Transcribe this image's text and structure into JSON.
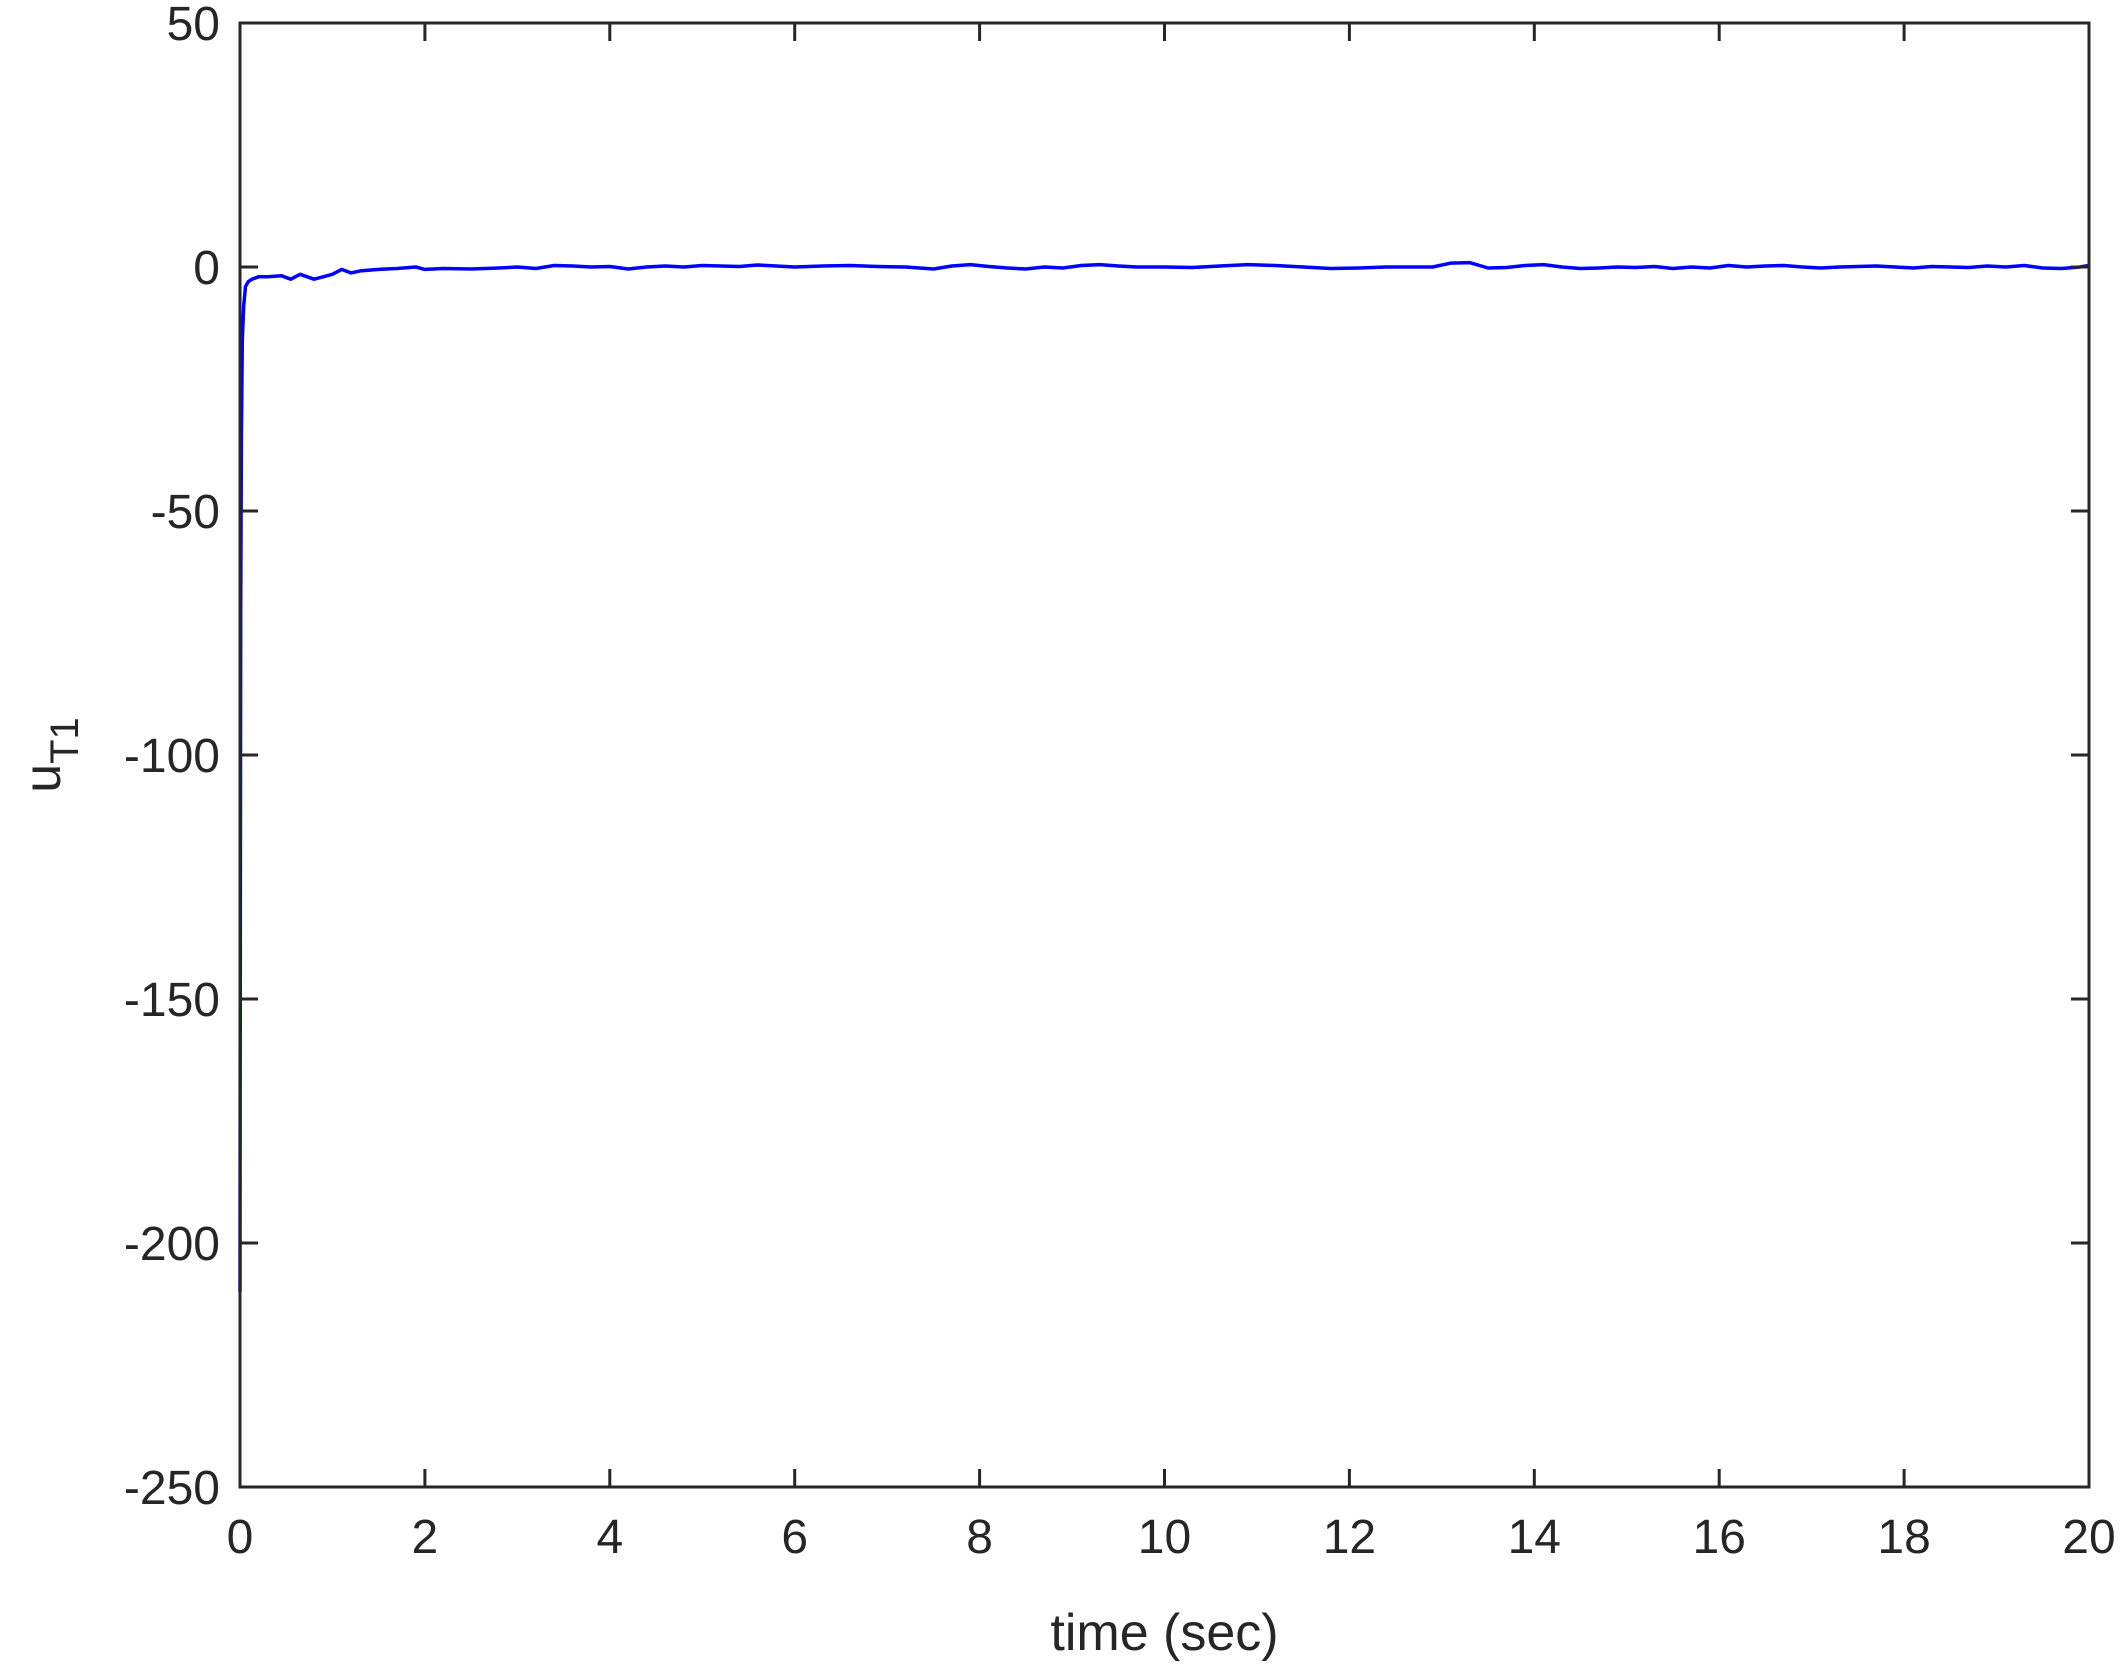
{
  "chart_data": {
    "type": "line",
    "title": "",
    "xlabel": "time (sec)",
    "ylabel_main": "u",
    "ylabel_sub": "T1",
    "xlim": [
      0,
      20
    ],
    "ylim": [
      -250,
      50
    ],
    "xticks": [
      0,
      2,
      4,
      6,
      8,
      10,
      12,
      14,
      16,
      18,
      20
    ],
    "yticks": [
      -250,
      -200,
      -150,
      -100,
      -50,
      0,
      50
    ],
    "xtick_labels": [
      "0",
      "2",
      "4",
      "6",
      "8",
      "10",
      "12",
      "14",
      "16",
      "18",
      "20"
    ],
    "ytick_labels": [
      "-250",
      "-200",
      "-150",
      "-100",
      "-50",
      "0",
      "50"
    ],
    "grid": false,
    "line_color": "#0000ff",
    "series": [
      {
        "x": [
          0,
          0.003,
          0.008,
          0.015,
          0.025,
          0.04,
          0.06,
          0.09,
          0.13,
          0.2,
          0.3,
          0.45,
          0.55,
          0.65,
          0.8,
          0.9,
          1.0,
          1.1,
          1.2,
          1.3,
          1.5,
          1.7,
          1.9,
          2.0,
          2.2,
          2.5,
          2.8,
          3.0,
          3.2,
          3.4,
          3.6,
          3.8,
          4.0,
          4.2,
          4.4,
          4.6,
          4.8,
          5.0,
          5.2,
          5.4,
          5.6,
          5.8,
          6.0,
          6.3,
          6.6,
          6.9,
          7.2,
          7.5,
          7.7,
          7.9,
          8.1,
          8.3,
          8.5,
          8.7,
          8.9,
          9.1,
          9.3,
          9.5,
          9.7,
          10.0,
          10.3,
          10.6,
          10.9,
          11.2,
          11.5,
          11.8,
          12.1,
          12.4,
          12.7,
          12.9,
          13.1,
          13.3,
          13.5,
          13.7,
          13.9,
          14.1,
          14.3,
          14.5,
          14.7,
          14.9,
          15.1,
          15.3,
          15.5,
          15.7,
          15.9,
          16.1,
          16.3,
          16.5,
          16.7,
          16.9,
          17.1,
          17.3,
          17.5,
          17.7,
          17.9,
          18.1,
          18.3,
          18.5,
          18.7,
          18.9,
          19.1,
          19.3,
          19.5,
          19.7,
          19.9,
          20.0
        ],
        "y": [
          -210,
          -140,
          -70,
          -35,
          -15,
          -8,
          -4,
          -3,
          -2.5,
          -2,
          -2,
          -1.8,
          -2.5,
          -1.5,
          -2.5,
          -2,
          -1.5,
          -0.5,
          -1.2,
          -0.8,
          -0.5,
          -0.3,
          0,
          -0.5,
          -0.3,
          -0.4,
          -0.2,
          0,
          -0.3,
          0.3,
          0.2,
          0,
          0.1,
          -0.4,
          0,
          0.2,
          0,
          0.3,
          0.2,
          0.1,
          0.4,
          0.2,
          0,
          0.2,
          0.3,
          0.1,
          0,
          -0.4,
          0.2,
          0.5,
          0.1,
          -0.2,
          -0.4,
          0,
          -0.2,
          0.3,
          0.5,
          0.2,
          0,
          0,
          -0.1,
          0.2,
          0.5,
          0.3,
          0,
          -0.3,
          -0.2,
          0,
          0,
          0,
          0.8,
          0.9,
          -0.2,
          -0.1,
          0.3,
          0.5,
          0,
          -0.3,
          -0.2,
          0,
          -0.1,
          0.1,
          -0.3,
          0,
          -0.2,
          0.3,
          0,
          0.2,
          0.3,
          0,
          -0.2,
          0,
          0.1,
          0.2,
          0,
          -0.2,
          0.1,
          0,
          -0.1,
          0.2,
          0,
          0.3,
          -0.2,
          -0.3,
          0,
          0.3
        ]
      }
    ]
  }
}
